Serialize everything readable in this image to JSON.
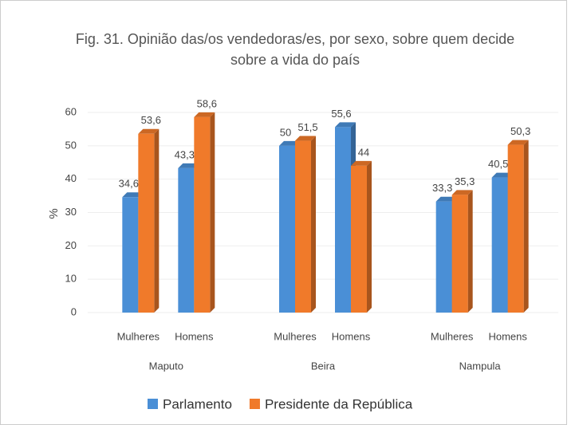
{
  "chart_data": {
    "type": "bar3d",
    "title": [
      "Fig. 31. Opinião das/os vendedoras/es, por sexo, sobre quem decide",
      "sobre a vida do país"
    ],
    "y_label": "%",
    "categories": [
      "Mulheres",
      "Homens",
      "Mulheres",
      "Homens",
      "Mulheres",
      "Homens"
    ],
    "groups": [
      "Maputo",
      "Beira",
      "Nampula"
    ],
    "series": [
      {
        "name": "Parlamento",
        "color": "#4a8fd6",
        "values": [
          34.6,
          43.3,
          50,
          55.6,
          33.3,
          40.5
        ],
        "value_labels": [
          "34,6",
          "43,3",
          "50",
          "55,6",
          "33,3",
          "40,5"
        ]
      },
      {
        "name": "Presidente da República",
        "color": "#f07a2a",
        "values": [
          53.6,
          58.6,
          51.5,
          44,
          35.3,
          50.3
        ],
        "value_labels": [
          "53,6",
          "58,6",
          "51,5",
          "44",
          "35,3",
          "50,3"
        ]
      }
    ],
    "ylim": [
      0,
      60
    ],
    "yticks": [
      0,
      10,
      20,
      30,
      40,
      50,
      60
    ],
    "grid": true,
    "legend": "bottom"
  }
}
